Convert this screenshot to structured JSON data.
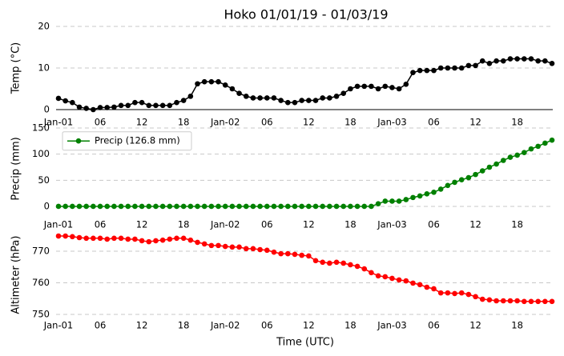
{
  "chart_data": {
    "type": "line",
    "title": "Hoko 01/01/19 - 01/03/19",
    "x_label": "Time (UTC)",
    "x": [
      "Jan-01 00:00",
      "Jan-01 01:00",
      "Jan-01 02:00",
      "Jan-01 03:00",
      "Jan-01 04:00",
      "Jan-01 05:00",
      "Jan-01 06:00",
      "Jan-01 07:00",
      "Jan-01 08:00",
      "Jan-01 09:00",
      "Jan-01 10:00",
      "Jan-01 11:00",
      "Jan-01 12:00",
      "Jan-01 13:00",
      "Jan-01 14:00",
      "Jan-01 15:00",
      "Jan-01 16:00",
      "Jan-01 17:00",
      "Jan-01 18:00",
      "Jan-01 19:00",
      "Jan-01 20:00",
      "Jan-01 21:00",
      "Jan-01 22:00",
      "Jan-01 23:00",
      "Jan-02 00:00",
      "Jan-02 01:00",
      "Jan-02 02:00",
      "Jan-02 03:00",
      "Jan-02 04:00",
      "Jan-02 05:00",
      "Jan-02 06:00",
      "Jan-02 07:00",
      "Jan-02 08:00",
      "Jan-02 09:00",
      "Jan-02 10:00",
      "Jan-02 11:00",
      "Jan-02 12:00",
      "Jan-02 13:00",
      "Jan-02 14:00",
      "Jan-02 15:00",
      "Jan-02 16:00",
      "Jan-02 17:00",
      "Jan-02 18:00",
      "Jan-02 19:00",
      "Jan-02 20:00",
      "Jan-02 21:00",
      "Jan-02 22:00",
      "Jan-02 23:00",
      "Jan-03 00:00",
      "Jan-03 01:00",
      "Jan-03 02:00",
      "Jan-03 03:00",
      "Jan-03 04:00",
      "Jan-03 05:00",
      "Jan-03 06:00",
      "Jan-03 07:00",
      "Jan-03 08:00",
      "Jan-03 09:00",
      "Jan-03 10:00",
      "Jan-03 11:00",
      "Jan-03 12:00",
      "Jan-03 13:00",
      "Jan-03 14:00",
      "Jan-03 15:00",
      "Jan-03 16:00",
      "Jan-03 17:00",
      "Jan-03 18:00",
      "Jan-03 19:00",
      "Jan-03 20:00",
      "Jan-03 21:00",
      "Jan-03 22:00",
      "Jan-03 23:00"
    ],
    "xlim": [
      "Jan-01 00:00",
      "Jan-03 23:00"
    ],
    "xticks": [
      {
        "value": "Jan-01 00:00",
        "label": "Jan-01"
      },
      {
        "value": "Jan-01 06:00",
        "label": "06"
      },
      {
        "value": "Jan-01 12:00",
        "label": "12"
      },
      {
        "value": "Jan-01 18:00",
        "label": "18"
      },
      {
        "value": "Jan-02 00:00",
        "label": "Jan-02"
      },
      {
        "value": "Jan-02 06:00",
        "label": "06"
      },
      {
        "value": "Jan-02 12:00",
        "label": "12"
      },
      {
        "value": "Jan-02 18:00",
        "label": "18"
      },
      {
        "value": "Jan-03 00:00",
        "label": "Jan-03"
      },
      {
        "value": "Jan-03 06:00",
        "label": "06"
      },
      {
        "value": "Jan-03 12:00",
        "label": "12"
      },
      {
        "value": "Jan-03 18:00",
        "label": "18"
      }
    ],
    "grid": true,
    "panels": [
      {
        "y_label": "Temp (°C)",
        "ylim": [
          0,
          20
        ],
        "yticks": [
          0,
          10,
          20
        ],
        "series": [
          {
            "color": "#000000",
            "values": [
              2.7,
              2.1,
              1.7,
              0.6,
              0.3,
              0.0,
              0.5,
              0.5,
              0.6,
              1.0,
              1.0,
              1.7,
              1.7,
              1.0,
              1.0,
              1.0,
              1.0,
              1.7,
              2.2,
              3.2,
              6.2,
              6.7,
              6.7,
              6.7,
              5.9,
              5.0,
              3.9,
              3.2,
              2.8,
              2.8,
              2.8,
              2.8,
              2.2,
              1.7,
              1.7,
              2.2,
              2.2,
              2.2,
              2.8,
              2.8,
              3.2,
              3.9,
              5.0,
              5.6,
              5.6,
              5.6,
              5.0,
              5.6,
              5.3,
              5.0,
              6.1,
              8.9,
              9.4,
              9.4,
              9.4,
              10.0,
              10.0,
              10.0,
              10.0,
              10.6,
              10.6,
              11.7,
              11.1,
              11.7,
              11.7,
              12.2,
              12.2,
              12.2,
              12.2,
              11.7,
              11.7,
              11.1
            ]
          }
        ]
      },
      {
        "y_label": "Precip (mm)",
        "ylim": [
          -8,
          152
        ],
        "yticks": [
          0,
          50,
          100,
          150
        ],
        "legend": "upper left",
        "series": [
          {
            "name": "Precip (126.8 mm)",
            "color": "#008000",
            "values": [
              0,
              0,
              0,
              0,
              0,
              0,
              0,
              0,
              0,
              0,
              0,
              0,
              0,
              0,
              0,
              0,
              0,
              0,
              0,
              0,
              0,
              0,
              0,
              0,
              0,
              0,
              0,
              0,
              0,
              0,
              0,
              0,
              0,
              0,
              0,
              0,
              0,
              0,
              0,
              0,
              0,
              0,
              0,
              0,
              0,
              0,
              5,
              10,
              10,
              10,
              13,
              17,
              20,
              24,
              27,
              33,
              40,
              46,
              51,
              55,
              61,
              68,
              75,
              81,
              88,
              94,
              98,
              103,
              110,
              115,
              121,
              126.8
            ]
          }
        ]
      },
      {
        "y_label": "Altimeter (hPa)",
        "ylim": [
          748.5,
          776.5
        ],
        "yticks": [
          750,
          760,
          770
        ],
        "series": [
          {
            "color": "#ff0000",
            "values": [
              774.8,
              774.8,
              774.6,
              774.3,
              774.1,
              774.1,
              774.1,
              773.8,
              774.1,
              774.1,
              773.8,
              773.8,
              773.3,
              773.0,
              773.3,
              773.5,
              773.8,
              774.1,
              774.1,
              773.5,
              772.8,
              772.3,
              771.8,
              771.8,
              771.5,
              771.3,
              771.3,
              770.8,
              770.8,
              770.5,
              770.3,
              769.7,
              769.2,
              769.2,
              769.0,
              768.7,
              768.5,
              767.0,
              766.5,
              766.2,
              766.5,
              766.2,
              765.7,
              765.2,
              764.4,
              763.2,
              762.2,
              761.9,
              761.4,
              760.9,
              760.6,
              759.9,
              759.4,
              758.6,
              758.1,
              756.8,
              756.8,
              756.6,
              756.8,
              756.3,
              755.6,
              754.8,
              754.6,
              754.3,
              754.3,
              754.3,
              754.3,
              754.1,
              754.1,
              754.1,
              754.1,
              754.1
            ]
          }
        ]
      }
    ]
  }
}
